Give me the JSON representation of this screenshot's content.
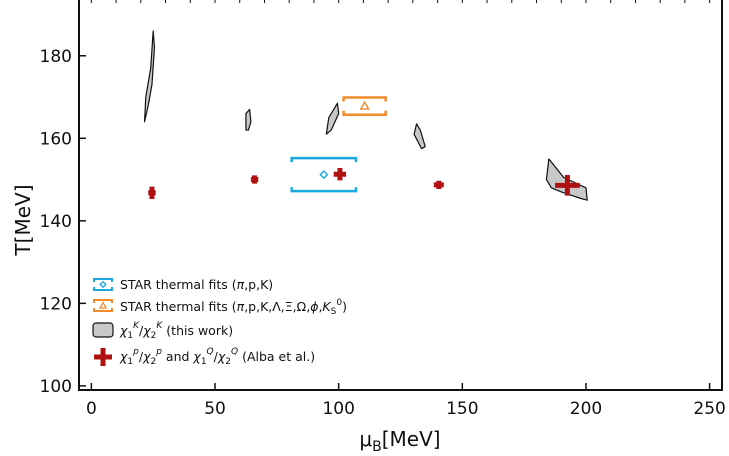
{
  "chart_data": {
    "type": "scatter",
    "xlabel": "μ_B[MeV]",
    "ylabel": "T[MeV]",
    "xlim": [
      -5,
      255
    ],
    "ylim": [
      99,
      194
    ],
    "x_ticks": [
      0,
      50,
      100,
      150,
      200,
      250
    ],
    "y_ticks": [
      100,
      120,
      140,
      160,
      180
    ],
    "grid": false,
    "legend_position": "bottom-left",
    "colors": {
      "star_pkpi": "#1aa8e0",
      "star_full": "#f58a2a",
      "this_work_fill": "#c8c8c8",
      "this_work_stroke": "#111111",
      "alba": "#b01010"
    },
    "legend": [
      {
        "key": "star_pkpi",
        "label": "STAR thermal fits (π,p,K)"
      },
      {
        "key": "star_full",
        "label": "STAR thermal fits (π,p,K,Λ,Ξ,Ω,ϕ,K_S^0)"
      },
      {
        "key": "this_work",
        "label": "χ_1^K/χ_2^K (this work)"
      },
      {
        "key": "alba",
        "label": "χ_1^p/χ_2^p and χ_1^Q/χ_2^Q (Alba et al.)"
      }
    ],
    "star_thermal_fits_pkpi": [
      {
        "x": 94,
        "y": 151.2,
        "x_low": 81,
        "x_high": 107,
        "y_low": 147.2,
        "y_high": 155.2
      }
    ],
    "star_thermal_fits_full": [
      {
        "x": 110.5,
        "y": 167.8,
        "x_low": 102,
        "x_high": 119,
        "y_low": 165.7,
        "y_high": 169.9
      }
    ],
    "this_work_regions": [
      {
        "center": [
          22.5,
          175
        ],
        "outline": [
          [
            21.5,
            164
          ],
          [
            22,
            170
          ],
          [
            24,
            177
          ],
          [
            25,
            186
          ],
          [
            25.5,
            182
          ],
          [
            24.5,
            173
          ],
          [
            23,
            168
          ]
        ]
      },
      {
        "center": [
          63.5,
          164.5
        ],
        "outline": [
          [
            62.5,
            162
          ],
          [
            62.5,
            166
          ],
          [
            64,
            167
          ],
          [
            64.5,
            164
          ],
          [
            63.5,
            162
          ]
        ]
      },
      {
        "center": [
          97.5,
          165
        ],
        "outline": [
          [
            95,
            161
          ],
          [
            96,
            165
          ],
          [
            99.5,
            168.5
          ],
          [
            100,
            166
          ],
          [
            97,
            162
          ]
        ]
      },
      {
        "center": [
          132.5,
          161
        ],
        "outline": [
          [
            130.5,
            161
          ],
          [
            131.5,
            163.5
          ],
          [
            133,
            162
          ],
          [
            135,
            158
          ],
          [
            133.5,
            157.5
          ]
        ]
      },
      {
        "center": [
          192,
          150
        ],
        "outline": [
          [
            184,
            150
          ],
          [
            184.5,
            152.5
          ],
          [
            185,
            155
          ],
          [
            191,
            150.5
          ],
          [
            200,
            148
          ],
          [
            200.5,
            145
          ],
          [
            197.5,
            145.5
          ],
          [
            190,
            147
          ],
          [
            186,
            148
          ]
        ]
      }
    ],
    "alba_points": [
      {
        "x": 24.5,
        "y": 146.8,
        "x_err": 1.5,
        "y_err": 1.5
      },
      {
        "x": 66,
        "y": 150,
        "x_err": 1.5,
        "y_err": 1
      },
      {
        "x": 100.5,
        "y": 151.3,
        "x_err": 2.5,
        "y_err": 1.5
      },
      {
        "x": 140.5,
        "y": 148.7,
        "x_err": 2,
        "y_err": 1
      },
      {
        "x": 192.5,
        "y": 148.6,
        "x_err": 5,
        "y_err": 2.5
      }
    ]
  }
}
